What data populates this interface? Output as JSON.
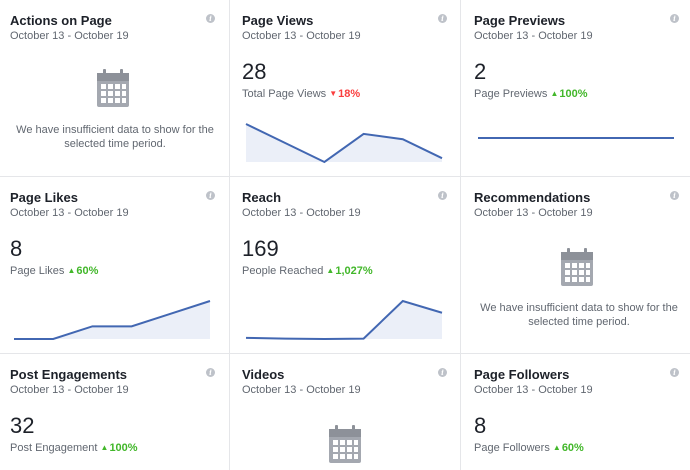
{
  "colors": {
    "line": "#4267b2",
    "fill": "#ebeff8",
    "up": "#42b72a",
    "down": "#fa3e3e",
    "icon": "#a4a8b0"
  },
  "cards": [
    {
      "title": "Actions on Page",
      "date_range": "October 13 - October 19",
      "nodata": [
        "We have insufficient data to show for the",
        "selected time period."
      ],
      "icon": "calendar-icon"
    },
    {
      "title": "Page Views",
      "date_range": "October 13 - October 19",
      "value": "28",
      "label": "Total Page Views",
      "change": "18%",
      "direction": "down",
      "trend": [
        8.5,
        6,
        3.5,
        7.2,
        6.5,
        4
      ]
    },
    {
      "title": "Page Previews",
      "date_range": "October 13 - October 19",
      "value": "2",
      "label": "Page Previews",
      "change": "100%",
      "direction": "up",
      "trend": [
        0,
        0,
        0,
        0,
        0,
        0
      ]
    },
    {
      "title": "Page Likes",
      "date_range": "October 13 - October 19",
      "value": "8",
      "label": "Page Likes",
      "change": "60%",
      "direction": "up",
      "trend": [
        0,
        0,
        1,
        1,
        2,
        3
      ]
    },
    {
      "title": "Reach",
      "date_range": "October 13 - October 19",
      "value": "169",
      "label": "People Reached",
      "change": "1,027%",
      "direction": "up",
      "trend": [
        3,
        2,
        1.5,
        2,
        50,
        35
      ]
    },
    {
      "title": "Recommendations",
      "date_range": "October 13 - October 19",
      "nodata": [
        "We have insufficient data to show for the",
        "selected time period."
      ],
      "icon": "calendar-icon"
    },
    {
      "title": "Post Engagements",
      "date_range": "October 13 - October 19",
      "value": "32",
      "label": "Post Engagement",
      "change": "100%",
      "direction": "up"
    },
    {
      "title": "Videos",
      "date_range": "October 13 - October 19",
      "icon": "calendar-icon"
    },
    {
      "title": "Page Followers",
      "date_range": "October 13 - October 19",
      "value": "8",
      "label": "Page Followers",
      "change": "60%",
      "direction": "up"
    }
  ]
}
